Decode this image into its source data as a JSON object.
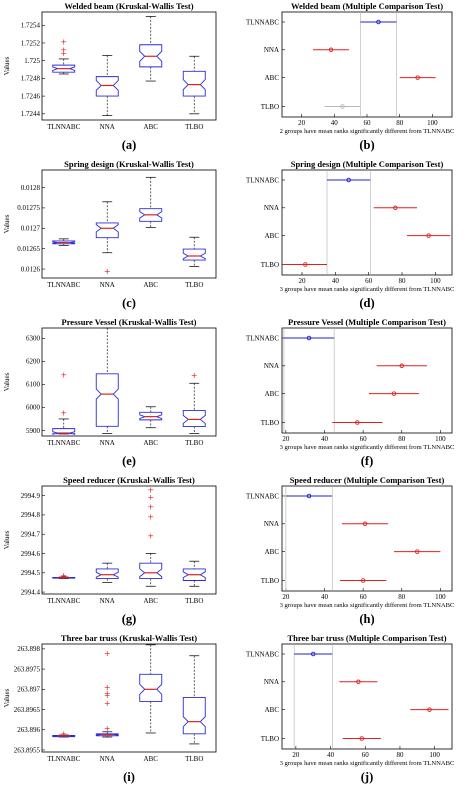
{
  "panels": [
    {
      "box": {
        "title": "Welded beam (Kruskal-Wallis Test)",
        "caption": "(a)",
        "ylabel": "Values",
        "categories": [
          "TLNNABC",
          "NNA",
          "ABC",
          "TLBO"
        ],
        "yticks": [
          "1.7244",
          "1.7246",
          "1.7248",
          "1.725",
          "1.7252",
          "1.7254"
        ],
        "ylim": [
          1.72433,
          1.72555
        ]
      },
      "mc": {
        "title": "Welded beam (Multiple Comparison Test)",
        "caption": "(b)",
        "note": "2 groups have mean ranks significantly different from TLNNABC",
        "categories": [
          "TLNNABC",
          "NNA",
          "ABC",
          "TLBO"
        ],
        "xticks": [
          "20",
          "40",
          "60",
          "80",
          "100"
        ],
        "xlim": [
          8,
          112
        ]
      }
    },
    {
      "box": {
        "title": "Spring design (Kruskal-Wallis Test)",
        "caption": "(c)",
        "ylabel": "Values",
        "categories": [
          "TLNNABC",
          "NNA",
          "ABC",
          "TLBO"
        ],
        "yticks": [
          "0.0126",
          "0.01265",
          "0.0127",
          "0.01275",
          "0.0128"
        ],
        "ylim": [
          0.012578,
          0.012843
        ]
      },
      "mc": {
        "title": "Spring design (Multiple Comparison Test)",
        "caption": "(d)",
        "note": "3 groups have mean ranks significantly different from TLNNABC",
        "categories": [
          "TLNNABC",
          "NNA",
          "ABC",
          "TLBO"
        ],
        "xticks": [
          "20",
          "40",
          "60",
          "80",
          "100"
        ],
        "xlim": [
          8,
          110
        ]
      }
    },
    {
      "box": {
        "title": "Pressure Vessel (Kruskal-Wallis Test)",
        "caption": "(e)",
        "ylabel": "Values",
        "categories": [
          "TLNNABC",
          "NNA",
          "ABC",
          "TLBO"
        ],
        "yticks": [
          "5900",
          "6000",
          "6100",
          "6200",
          "6300"
        ],
        "ylim": [
          5876,
          6345
        ]
      },
      "mc": {
        "title": "Pressure Vessel (Multiple Comparison Test)",
        "caption": "(f)",
        "note": "3 groups have mean ranks significantly different from TLNNABC",
        "categories": [
          "TLNNABC",
          "NNA",
          "ABC",
          "TLBO"
        ],
        "xticks": [
          "20",
          "40",
          "60",
          "80",
          "100"
        ],
        "xlim": [
          18,
          106
        ]
      }
    },
    {
      "box": {
        "title": "Speed reducer (Kruskal-Wallis Test)",
        "caption": "(g)",
        "ylabel": "Values",
        "categories": [
          "TLNNABC",
          "NNA",
          "ABC",
          "TLBO"
        ],
        "yticks": [
          "2994.4",
          "2994.5",
          "2994.6",
          "2994.7",
          "2994.8",
          "2994.9"
        ],
        "ylim": [
          2994.39,
          2994.95
        ]
      },
      "mc": {
        "title": "Speed reducer (Multiple Comparison Test)",
        "caption": "(h)",
        "note": "3 groups have mean ranks significantly different from TLNNABC",
        "categories": [
          "TLNNABC",
          "NNA",
          "ABC",
          "TLBO"
        ],
        "xticks": [
          "20",
          "40",
          "60",
          "80",
          "100"
        ],
        "xlim": [
          18,
          106
        ]
      }
    },
    {
      "box": {
        "title": "Three bar truss (Kruskal-Wallis Test)",
        "caption": "(i)",
        "ylabel": "Values",
        "categories": [
          "TLNNABC",
          "NNA",
          "ABC",
          "TLBO"
        ],
        "yticks": [
          "263.8955",
          "263.896",
          "263.8965",
          "263.897",
          "263.8975",
          "263.898"
        ],
        "ylim": [
          263.89545,
          263.89812
        ]
      },
      "mc": {
        "title": "Three bar truss (Multiple Comparison Test)",
        "caption": "(j)",
        "note": "3 groups have mean ranks significantly different from TLNNABC",
        "categories": [
          "TLNNABC",
          "NNA",
          "ABC",
          "TLBO"
        ],
        "xticks": [
          "20",
          "40",
          "60",
          "80",
          "100"
        ],
        "xlim": [
          12,
          110
        ]
      }
    }
  ],
  "colors": {
    "box": "#2b2bd9",
    "median": "#e02020",
    "whisker": "#1a1a1a",
    "outlier": "#e02020",
    "mc_best": "#2020c8",
    "mc_diff": "#e02020",
    "mc_same": "#b8b8b8",
    "guide": "#b0b0b0"
  },
  "chart_data": [
    {
      "type": "box",
      "categories": [
        "TLNNABC",
        "NNA",
        "ABC",
        "TLBO"
      ],
      "series": [
        {
          "min": 1.72485,
          "q1": 1.72487,
          "median": 1.72491,
          "q3": 1.72495,
          "max": 1.72502,
          "outliers": [
            1.72508,
            1.72512,
            1.72521
          ]
        },
        {
          "min": 1.72438,
          "q1": 1.7246,
          "median": 1.72472,
          "q3": 1.72482,
          "max": 1.72506
        },
        {
          "min": 1.72477,
          "q1": 1.72493,
          "median": 1.72505,
          "q3": 1.72518,
          "max": 1.7255
        },
        {
          "min": 1.7244,
          "q1": 1.7246,
          "median": 1.72473,
          "q3": 1.72488,
          "max": 1.72505
        }
      ],
      "ylim": [
        1.72433,
        1.72555
      ]
    },
    {
      "type": "interval",
      "categories": [
        "TLNNABC",
        "NNA",
        "ABC",
        "TLBO"
      ],
      "means": [
        67,
        38,
        91,
        45
      ],
      "halfwidth": 11,
      "status": [
        "best",
        "diff",
        "diff",
        "same"
      ],
      "xlim": [
        8,
        112
      ]
    },
    {
      "type": "box",
      "categories": [
        "TLNNABC",
        "NNA",
        "ABC",
        "TLBO"
      ],
      "series": [
        {
          "min": 0.012658,
          "q1": 0.012662,
          "median": 0.012665,
          "q3": 0.012669,
          "max": 0.012674
        },
        {
          "min": 0.01264,
          "q1": 0.012677,
          "median": 0.0127,
          "q3": 0.012713,
          "max": 0.012765,
          "outliers": [
            0.012594
          ]
        },
        {
          "min": 0.012702,
          "q1": 0.012717,
          "median": 0.012733,
          "q3": 0.012748,
          "max": 0.012825
        },
        {
          "min": 0.012606,
          "q1": 0.012622,
          "median": 0.012632,
          "q3": 0.012649,
          "max": 0.012678
        }
      ],
      "ylim": [
        0.012578,
        0.012843
      ]
    },
    {
      "type": "interval",
      "categories": [
        "TLNNABC",
        "NNA",
        "ABC",
        "TLBO"
      ],
      "means": [
        48,
        76,
        96,
        22
      ],
      "halfwidth": 13,
      "status": [
        "best",
        "diff",
        "diff",
        "diff"
      ],
      "xlim": [
        8,
        110
      ]
    },
    {
      "type": "box",
      "categories": [
        "TLNNABC",
        "NNA",
        "ABC",
        "TLBO"
      ],
      "series": [
        {
          "min": 5885,
          "q1": 5886,
          "median": 5889,
          "q3": 5908,
          "max": 5950,
          "outliers": [
            5975,
            6140
          ]
        },
        {
          "min": 5887,
          "q1": 5918,
          "median": 6058,
          "q3": 6146,
          "max": 6345
        },
        {
          "min": 5912,
          "q1": 5946,
          "median": 5960,
          "q3": 5979,
          "max": 6003
        },
        {
          "min": 5887,
          "q1": 5917,
          "median": 5948,
          "q3": 5987,
          "max": 6105,
          "outliers": [
            6138
          ]
        }
      ],
      "ylim": [
        5876,
        6345
      ]
    },
    {
      "type": "interval",
      "categories": [
        "TLNNABC",
        "NNA",
        "ABC",
        "TLBO"
      ],
      "means": [
        32,
        80,
        76,
        57
      ],
      "halfwidth": 13,
      "status": [
        "best",
        "diff",
        "diff",
        "diff"
      ],
      "xlim": [
        18,
        106
      ]
    },
    {
      "type": "box",
      "categories": [
        "TLNNABC",
        "NNA",
        "ABC",
        "TLBO"
      ],
      "series": [
        {
          "min": 2994.47,
          "q1": 2994.472,
          "median": 2994.474,
          "q3": 2994.476,
          "max": 2994.478,
          "outliers": [
            2994.48,
            2994.485
          ]
        },
        {
          "min": 2994.45,
          "q1": 2994.47,
          "median": 2994.49,
          "q3": 2994.52,
          "max": 2994.55
        },
        {
          "min": 2994.43,
          "q1": 2994.47,
          "median": 2994.5,
          "q3": 2994.55,
          "max": 2994.6,
          "outliers": [
            2994.69,
            2994.79,
            2994.84,
            2994.89,
            2994.93
          ]
        },
        {
          "min": 2994.43,
          "q1": 2994.46,
          "median": 2994.49,
          "q3": 2994.52,
          "max": 2994.56
        }
      ],
      "ylim": [
        2994.39,
        2994.95
      ]
    },
    {
      "type": "interval",
      "categories": [
        "TLNNABC",
        "NNA",
        "ABC",
        "TLBO"
      ],
      "means": [
        32,
        61,
        88,
        60
      ],
      "halfwidth": 12,
      "status": [
        "best",
        "diff",
        "diff",
        "diff"
      ],
      "xlim": [
        18,
        106
      ]
    },
    {
      "type": "box",
      "categories": [
        "TLNNABC",
        "NNA",
        "ABC",
        "TLBO"
      ],
      "series": [
        {
          "min": 263.89582,
          "q1": 263.89583,
          "median": 263.89585,
          "q3": 263.89586,
          "max": 263.89587,
          "outliers": [
            263.8959
          ]
        },
        {
          "min": 263.89582,
          "q1": 263.89585,
          "median": 263.89588,
          "q3": 263.8959,
          "max": 263.89595,
          "outliers": [
            263.89603,
            263.89665,
            263.89685,
            263.8969,
            263.89705,
            263.89788
          ]
        },
        {
          "min": 263.89592,
          "q1": 263.8967,
          "median": 263.897,
          "q3": 263.89737,
          "max": 263.8981
        },
        {
          "min": 263.89565,
          "q1": 263.8959,
          "median": 263.8962,
          "q3": 263.8968,
          "max": 263.89783
        }
      ],
      "ylim": [
        263.89545,
        263.89812
      ]
    },
    {
      "type": "interval",
      "categories": [
        "TLNNABC",
        "NNA",
        "ABC",
        "TLBO"
      ],
      "means": [
        30,
        56,
        97,
        58
      ],
      "halfwidth": 11,
      "status": [
        "best",
        "diff",
        "diff",
        "diff"
      ],
      "xlim": [
        12,
        110
      ]
    }
  ]
}
